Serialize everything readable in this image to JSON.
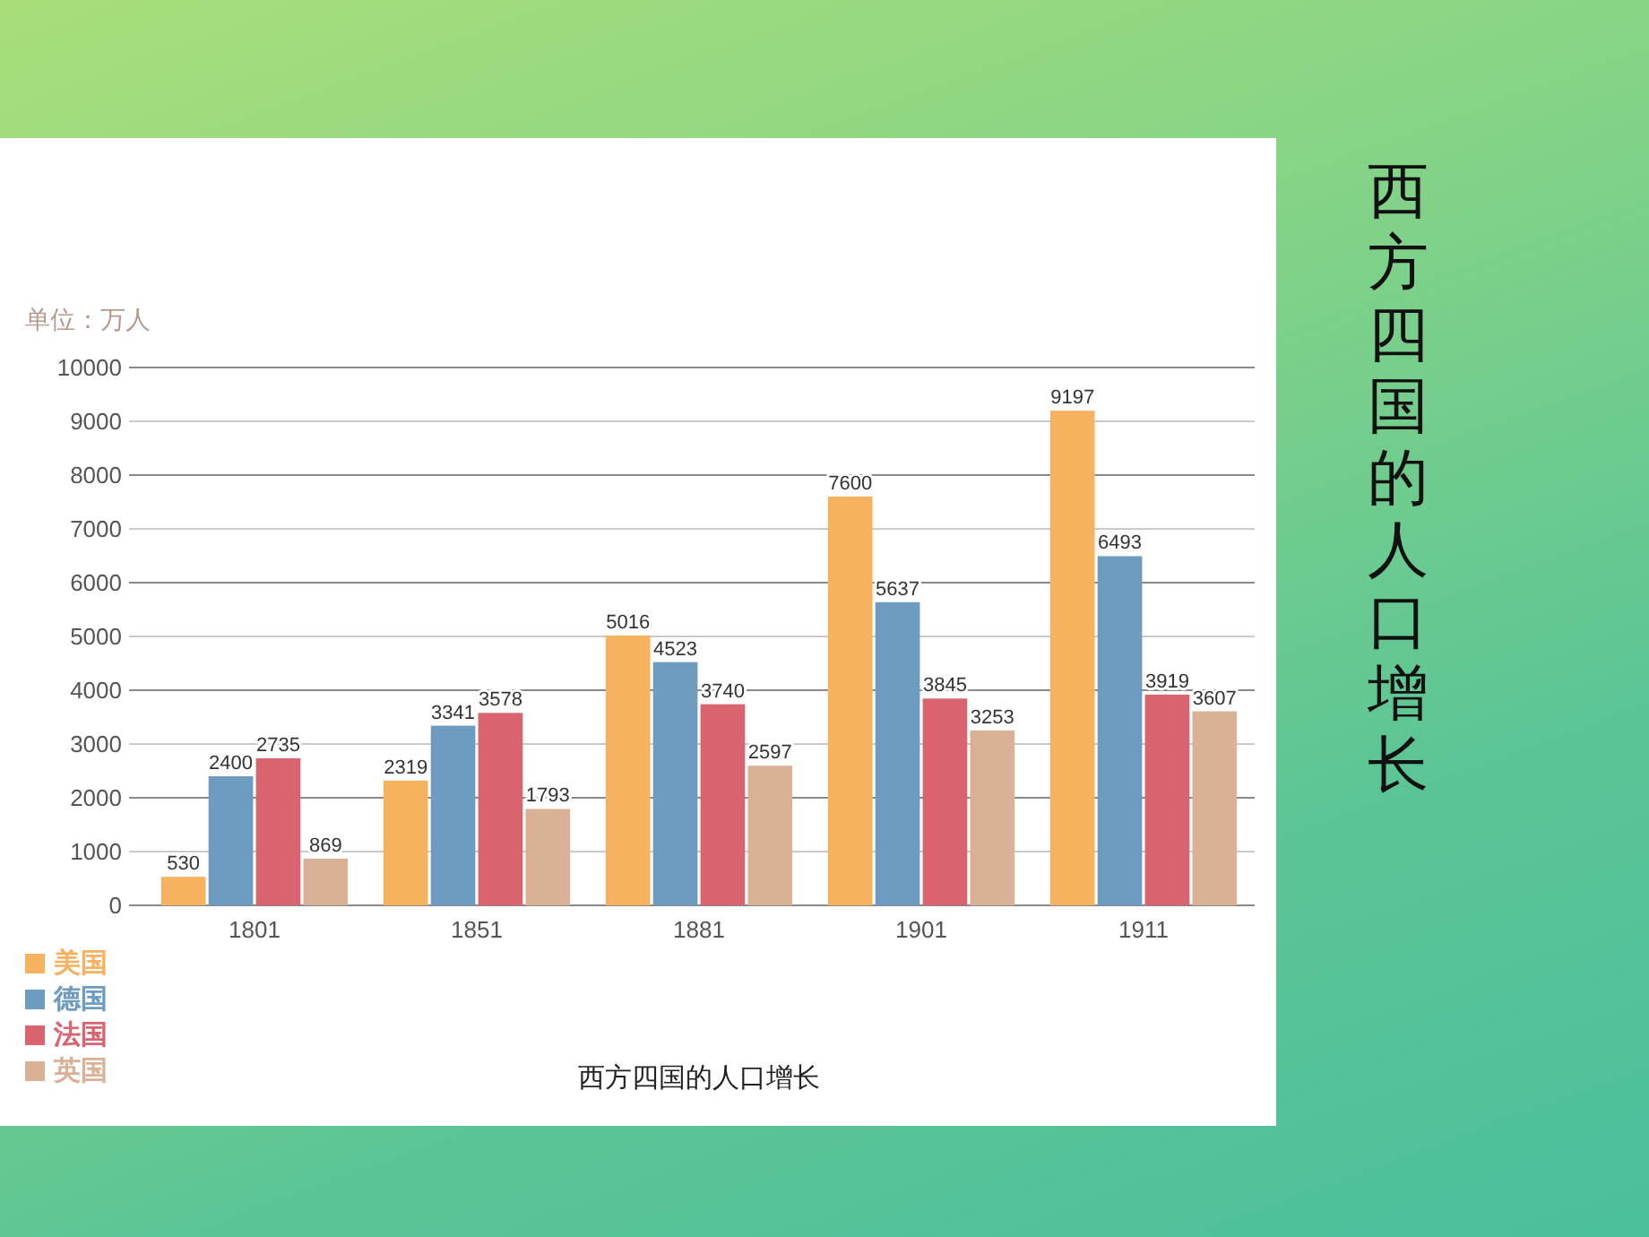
{
  "chart_data": {
    "type": "bar",
    "title": "西方四国的人口增长",
    "ylabel": "单位：万人",
    "annotations": [
      "西方四国的人口增长"
    ],
    "categories": [
      "1801",
      "1851",
      "1881",
      "1901",
      "1911"
    ],
    "series": [
      {
        "name": "美国",
        "color": "#f6b25e",
        "values": [
          530,
          2319,
          5016,
          7600,
          9197
        ]
      },
      {
        "name": "德国",
        "color": "#6e9cc0",
        "values": [
          2400,
          3341,
          4523,
          5637,
          6493
        ]
      },
      {
        "name": "法国",
        "color": "#d9646f",
        "values": [
          2735,
          3578,
          3740,
          3845,
          3919
        ]
      },
      {
        "name": "英国",
        "color": "#d8b197",
        "values": [
          869,
          1793,
          2597,
          3253,
          3607
        ]
      }
    ],
    "ylim": [
      0,
      10000
    ],
    "yticks": [
      0,
      1000,
      2000,
      3000,
      4000,
      5000,
      6000,
      7000,
      8000,
      9000,
      10000
    ],
    "grid": "y",
    "legend": "bottom left",
    "data_labels": true
  }
}
